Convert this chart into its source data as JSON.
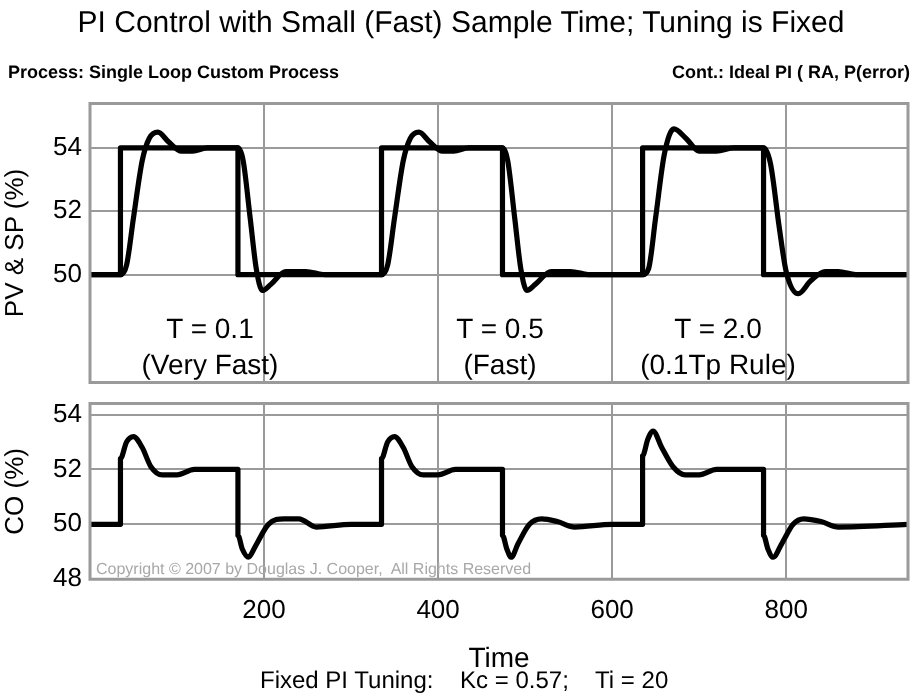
{
  "chart_data": [
    {
      "type": "line",
      "title": "PI Control with Small (Fast) Sample Time; Tuning is Fixed",
      "ylabel": "PV & SP (%)",
      "xlim": [
        0,
        940
      ],
      "xticks": [
        200,
        400,
        600,
        800
      ],
      "ylim": [
        46.6,
        55.4
      ],
      "yticks": [
        50,
        52,
        54
      ],
      "grid": true,
      "tick_labels": "y",
      "annotations": [
        "Process: Single Loop Custom Process",
        "Cont.: Ideal PI ( RA, P(error)",
        "T = 0.1\n(Very Fast)",
        "T = 0.5\n(Fast)",
        "T = 2.0\n(0.1Tp Rule)"
      ],
      "series": [
        {
          "type": "step",
          "color": "#000000",
          "x": [
            0,
            35,
            170,
            335,
            474,
            635,
            774,
            940
          ],
          "values": [
            50,
            54,
            50,
            54,
            50,
            54,
            50,
            50
          ]
        },
        {
          "type": "line",
          "color": "#000000",
          "x": [
            0,
            35,
            42,
            50,
            60,
            68,
            78,
            90,
            105,
            118,
            135,
            170,
            176,
            184,
            191,
            198,
            208,
            225,
            248,
            270,
            335,
            342,
            350,
            360,
            368,
            378,
            390,
            405,
            418,
            435,
            474,
            480,
            488,
            495,
            502,
            512,
            530,
            552,
            575,
            635,
            642,
            650,
            660,
            671,
            685,
            700,
            720,
            740,
            774,
            782,
            792,
            800,
            814,
            828,
            845,
            860,
            880,
            940
          ],
          "values": [
            50,
            50,
            50.3,
            51.8,
            53.6,
            54.3,
            54.5,
            54.2,
            53.9,
            53.9,
            54,
            54,
            53.6,
            51.8,
            50.2,
            49.5,
            49.7,
            50.1,
            50.1,
            50,
            50,
            50.3,
            51.8,
            53.6,
            54.3,
            54.5,
            54.2,
            53.9,
            53.9,
            54,
            54,
            53.6,
            51.8,
            50.2,
            49.5,
            49.7,
            50.1,
            50.1,
            50,
            50,
            50.2,
            51.8,
            53.8,
            54.6,
            54.3,
            53.9,
            53.9,
            54,
            54,
            53.5,
            51.5,
            50.1,
            49.4,
            49.8,
            50.1,
            50.1,
            50,
            50
          ]
        }
      ]
    },
    {
      "type": "line",
      "xlabel": "Time",
      "ylabel": "CO (%)",
      "xlim": [
        0,
        940
      ],
      "xticks": [
        200,
        400,
        600,
        800
      ],
      "ylim": [
        48,
        54.4
      ],
      "yticks": [
        48,
        50,
        52,
        54
      ],
      "grid": true,
      "annotations": [
        "Copyright © 2007 by Douglas J. Cooper,  All Rights Reserved",
        "Fixed PI Tuning:    Kc = 0.57;    Ti = 20"
      ],
      "series": [
        {
          "type": "line",
          "color": "#000000",
          "x": [
            0,
            35,
            35,
            42,
            50,
            60,
            70,
            83,
            100,
            120,
            170,
            170,
            175,
            182,
            190,
            205,
            223,
            240,
            260,
            300,
            335,
            335,
            342,
            350,
            360,
            370,
            383,
            400,
            420,
            474,
            474,
            479,
            484,
            492,
            505,
            519,
            537,
            557,
            600,
            635,
            635,
            641,
            647,
            657,
            670,
            684,
            700,
            720,
            774,
            774,
            779,
            785,
            795,
            808,
            820,
            840,
            860,
            940
          ],
          "values": [
            50,
            50,
            52.4,
            53,
            53.2,
            52.8,
            52.1,
            51.8,
            51.8,
            52,
            52,
            49.6,
            49.1,
            48.8,
            49.2,
            50,
            50.2,
            50.2,
            49.9,
            50,
            50,
            52.4,
            53,
            53.2,
            52.8,
            52.1,
            51.8,
            51.8,
            52,
            52,
            49.6,
            49.1,
            48.8,
            49.3,
            50,
            50.2,
            50.1,
            49.9,
            50,
            50,
            52.5,
            53.1,
            53.4,
            52.8,
            52.1,
            51.8,
            51.8,
            52,
            52,
            49.6,
            49.1,
            48.8,
            49.3,
            50,
            50.2,
            50.1,
            49.9,
            50
          ]
        }
      ]
    }
  ]
}
